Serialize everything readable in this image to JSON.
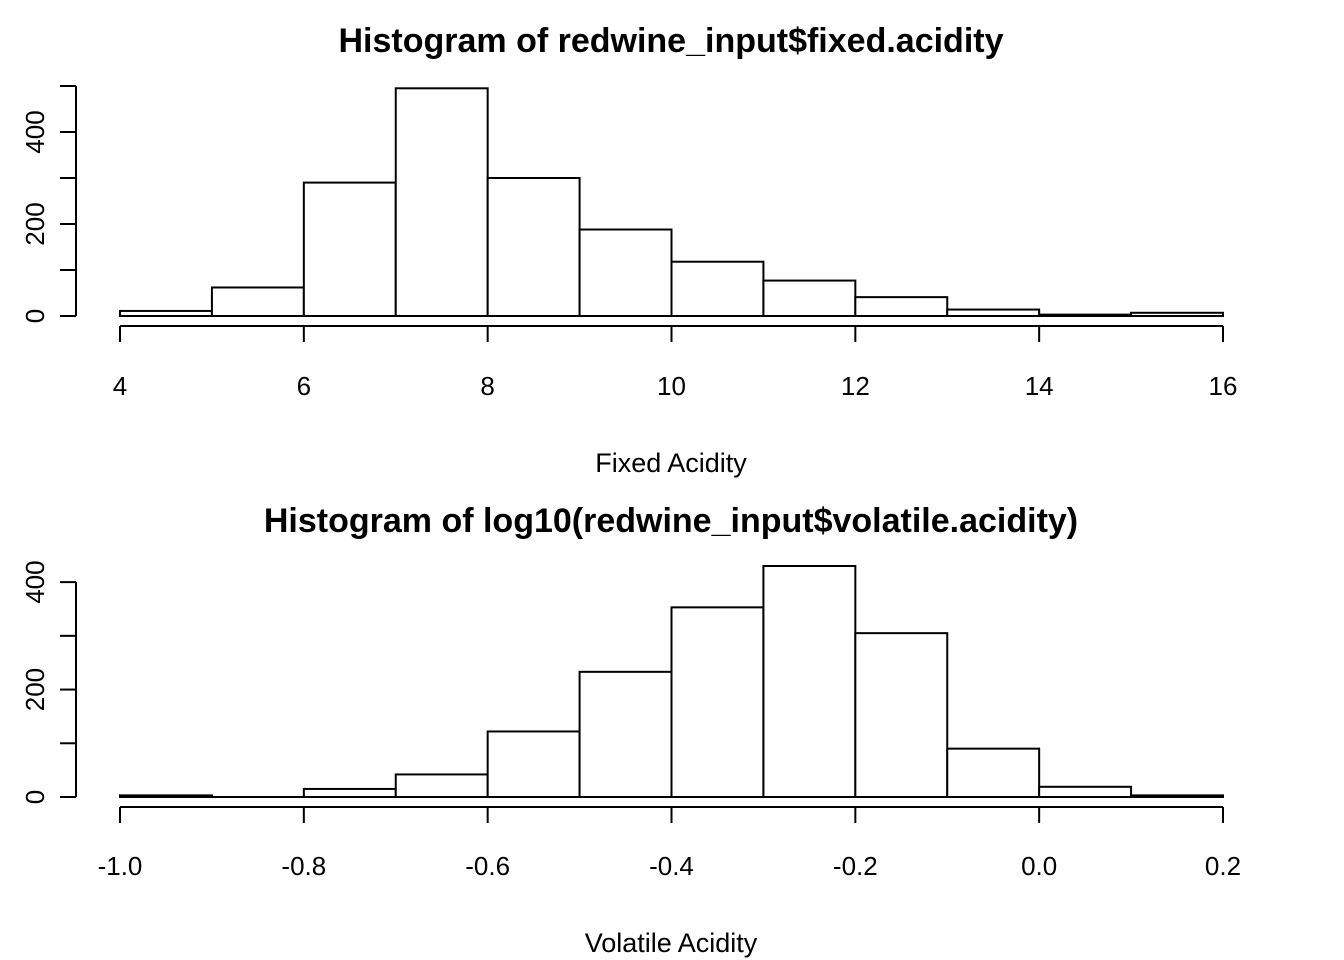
{
  "chart_data": [
    {
      "type": "bar",
      "title": "Histogram of redwine_input$fixed.acidity",
      "xlabel": "Fixed Acidity",
      "ylabel": "",
      "bin_edges": [
        4,
        5,
        6,
        7,
        8,
        9,
        10,
        11,
        12,
        13,
        14,
        15,
        16
      ],
      "values": [
        11,
        62,
        290,
        495,
        300,
        188,
        118,
        77,
        41,
        14,
        3,
        7
      ],
      "xlim": [
        4,
        16
      ],
      "ylim": [
        0,
        500
      ],
      "x_ticks": [
        {
          "value": 4,
          "label": "4"
        },
        {
          "value": 6,
          "label": "6"
        },
        {
          "value": 8,
          "label": "8"
        },
        {
          "value": 10,
          "label": "10"
        },
        {
          "value": 12,
          "label": "12"
        },
        {
          "value": 14,
          "label": "14"
        },
        {
          "value": 16,
          "label": "16"
        }
      ],
      "y_ticks_major": [
        {
          "value": 0,
          "label": "0"
        },
        {
          "value": 200,
          "label": "200"
        },
        {
          "value": 400,
          "label": "400"
        }
      ],
      "y_ticks_minor": [
        100,
        300,
        500
      ],
      "grid": false
    },
    {
      "type": "bar",
      "title": "Histogram of log10(redwine_input$volatile.acidity)",
      "xlabel": "Volatile Acidity",
      "ylabel": "",
      "bin_edges": [
        -1.0,
        -0.9,
        -0.8,
        -0.7,
        -0.6,
        -0.5,
        -0.4,
        -0.3,
        -0.2,
        -0.1,
        0.0,
        0.1,
        0.2
      ],
      "values": [
        3,
        0,
        15,
        42,
        122,
        233,
        353,
        430,
        305,
        90,
        19,
        3
      ],
      "xlim": [
        -1.0,
        0.2
      ],
      "ylim": [
        0,
        430
      ],
      "x_ticks": [
        {
          "value": -1.0,
          "label": "-1.0"
        },
        {
          "value": -0.8,
          "label": "-0.8"
        },
        {
          "value": -0.6,
          "label": "-0.6"
        },
        {
          "value": -0.4,
          "label": "-0.4"
        },
        {
          "value": -0.2,
          "label": "-0.2"
        },
        {
          "value": 0.0,
          "label": "0.0"
        },
        {
          "value": 0.2,
          "label": "0.2"
        }
      ],
      "y_ticks_major": [
        {
          "value": 0,
          "label": "0"
        },
        {
          "value": 200,
          "label": "200"
        },
        {
          "value": 400,
          "label": "400"
        }
      ],
      "y_ticks_minor": [
        100,
        300
      ],
      "grid": false
    }
  ]
}
